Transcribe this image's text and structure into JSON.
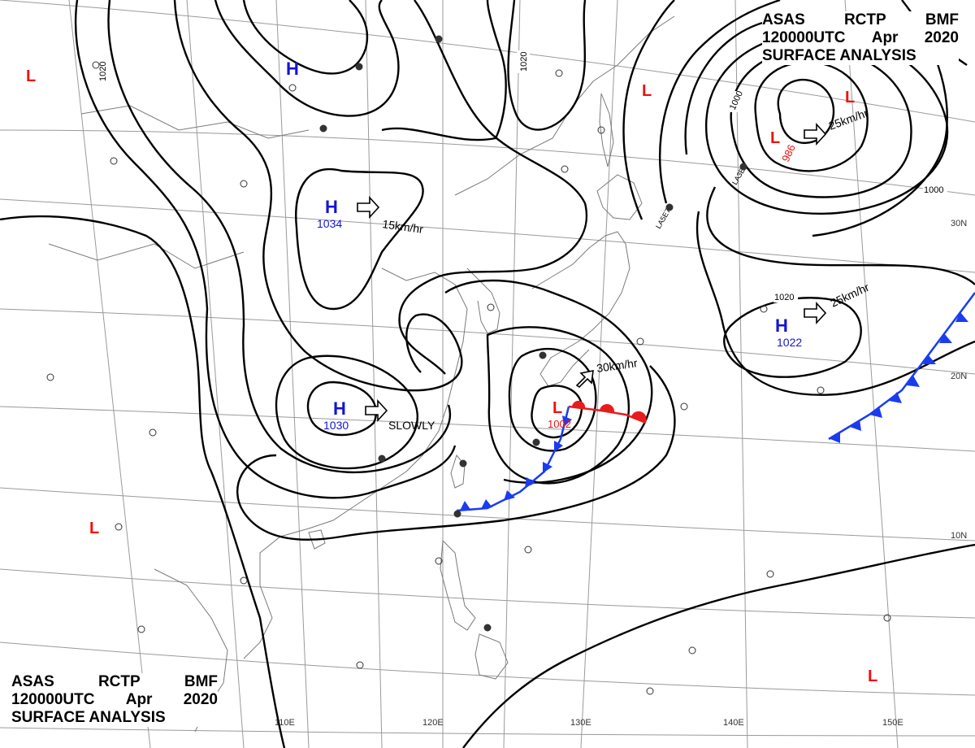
{
  "header": {
    "line1": [
      "ASAS",
      "RCTP",
      "BMF"
    ],
    "line2": [
      "120000UTC",
      "Apr",
      "2020"
    ],
    "line3": "SURFACE ANALYSIS"
  },
  "colors": {
    "high": "#1414d2",
    "low": "#ee1111",
    "cold_front": "#1a3cf0",
    "warm_front": "#e81c1c",
    "isobar": "#000000",
    "grid": "#9a9a9a",
    "coast": "#7a7a7a"
  },
  "lon_labels": [
    "110E",
    "120E",
    "130E",
    "140E",
    "150E"
  ],
  "lat_labels": [
    "30N",
    "20N",
    "10N"
  ],
  "pressure_centers": [
    {
      "type": "H",
      "value": ""
    },
    {
      "type": "H",
      "value": "1034"
    },
    {
      "type": "H",
      "value": "1030"
    },
    {
      "type": "H",
      "value": "1022"
    },
    {
      "type": "L",
      "value": "1002"
    },
    {
      "type": "L",
      "value": "986"
    },
    {
      "type": "L",
      "value": ""
    },
    {
      "type": "L",
      "value": ""
    },
    {
      "type": "L",
      "value": ""
    },
    {
      "type": "L",
      "value": ""
    },
    {
      "type": "L",
      "value": ""
    }
  ],
  "isobar_labels": [
    "1020",
    "1020",
    "1000",
    "1000",
    "1020"
  ],
  "motion_labels": [
    "15km/hr",
    "SLOWLY",
    "30km/hr",
    "25km/hr",
    "25km/hr"
  ],
  "station_labels": [
    "LA3E7",
    "LA5E7"
  ],
  "icons": [
    "high-pressure-icon",
    "low-pressure-icon",
    "motion-arrow-icon",
    "station-circle-icon"
  ]
}
